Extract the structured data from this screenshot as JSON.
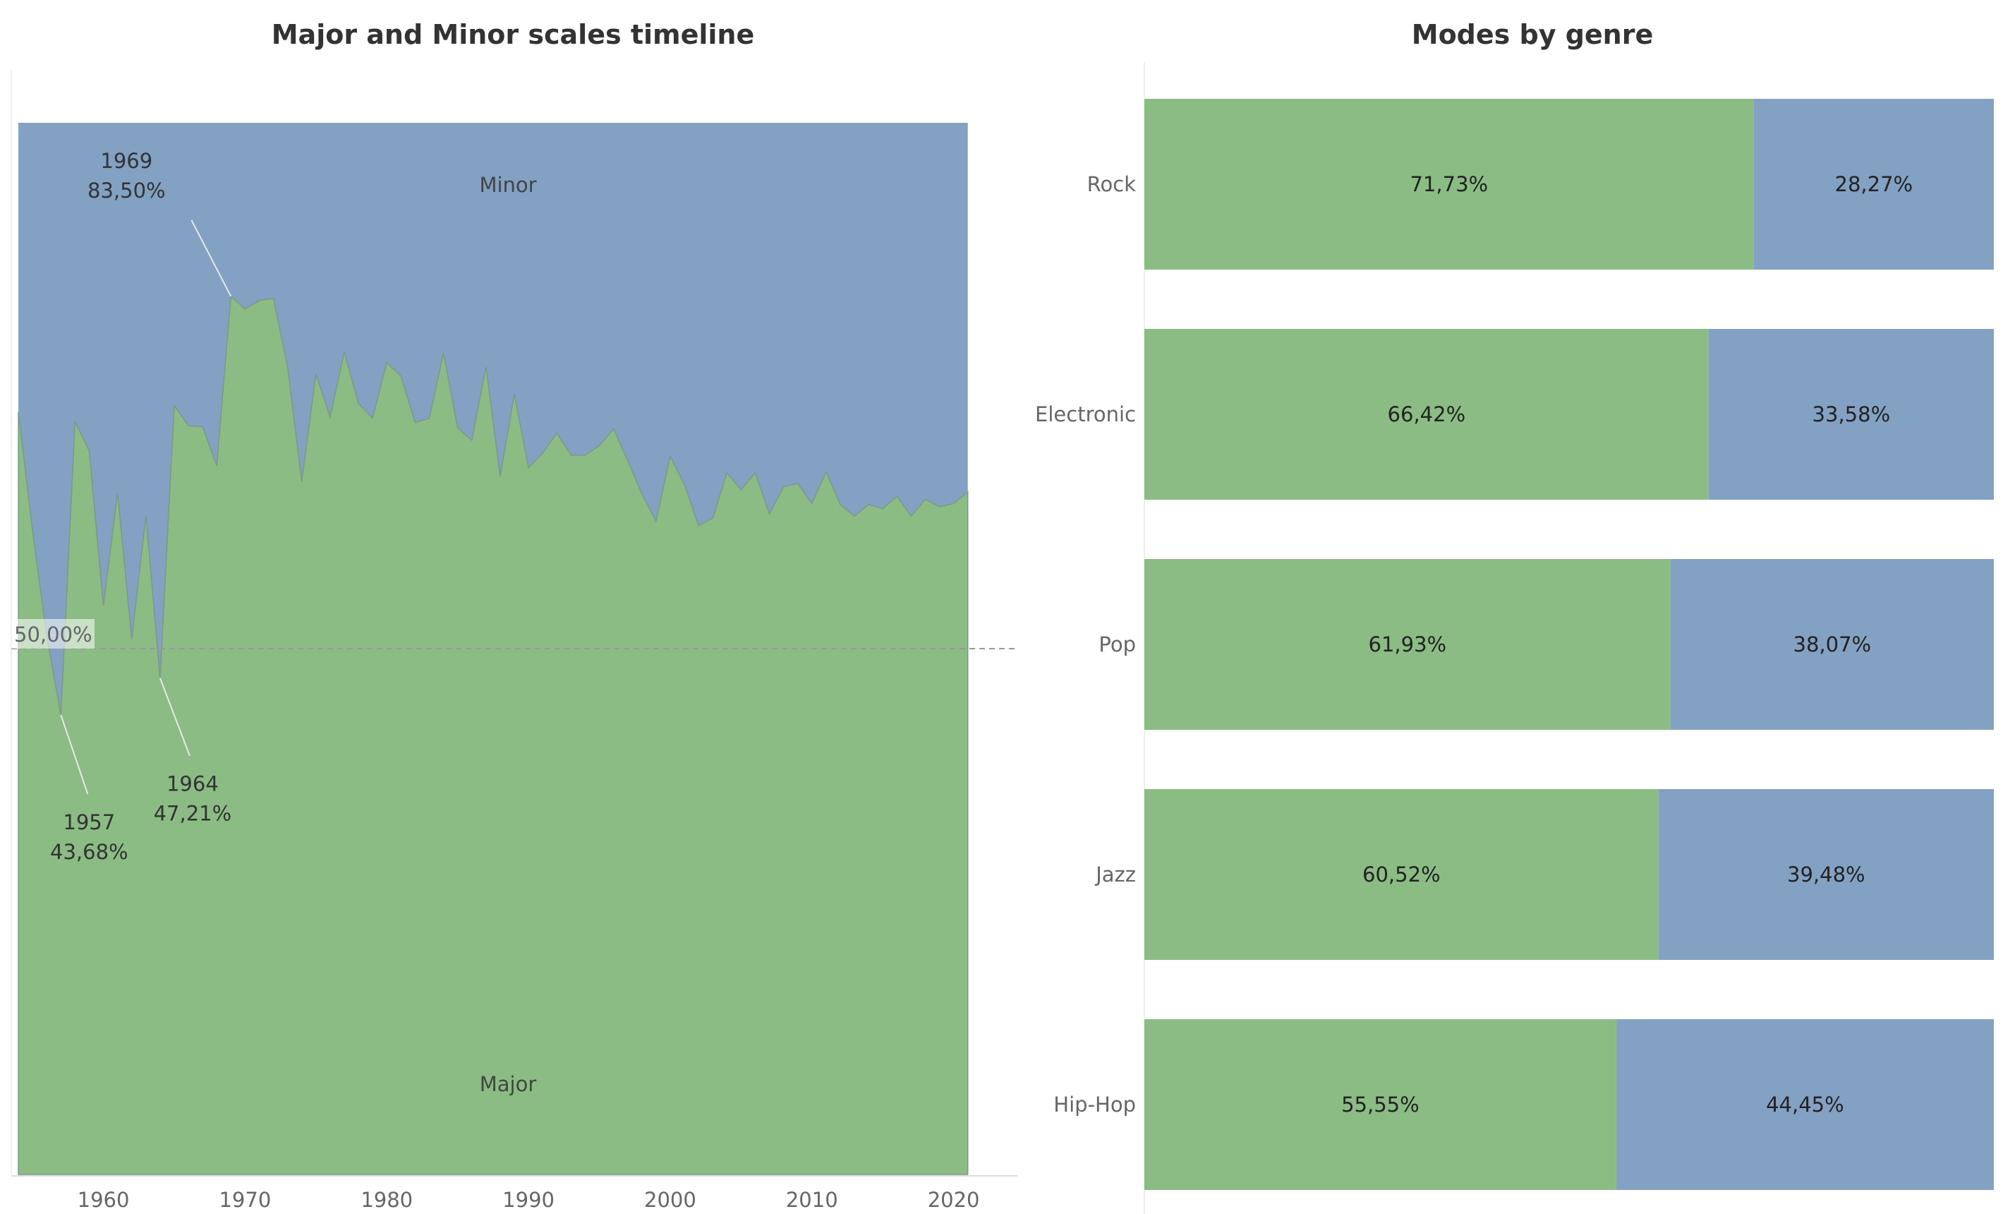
{
  "chart_data": [
    {
      "type": "area",
      "title": "Major and Minor scales timeline",
      "xlabel": "",
      "ylabel": "",
      "xlim": [
        1953.5,
        2024.5
      ],
      "ylim": [
        0,
        1
      ],
      "stacked_100": true,
      "x_ticks": [
        1960,
        1970,
        1980,
        1990,
        2000,
        2010,
        2020
      ],
      "x_tick_labels": [
        "1960",
        "1970",
        "1980",
        "1990",
        "2000",
        "2010",
        "2020"
      ],
      "x": [
        1954,
        1955,
        1956,
        1957,
        1958,
        1959,
        1960,
        1961,
        1962,
        1963,
        1964,
        1965,
        1966,
        1967,
        1968,
        1969,
        1970,
        1971,
        1972,
        1973,
        1974,
        1975,
        1976,
        1977,
        1978,
        1979,
        1980,
        1981,
        1982,
        1983,
        1984,
        1985,
        1986,
        1987,
        1988,
        1989,
        1990,
        1991,
        1992,
        1993,
        1994,
        1995,
        1996,
        1997,
        1998,
        1999,
        2000,
        2001,
        2002,
        2003,
        2004,
        2005,
        2006,
        2007,
        2008,
        2009,
        2010,
        2011,
        2012,
        2013,
        2014,
        2015,
        2016,
        2017,
        2018,
        2019,
        2020,
        2021
      ],
      "series": [
        {
          "name": "Major",
          "color": "#8abc84",
          "values": [
            0.725,
            0.612,
            0.512,
            0.437,
            0.716,
            0.688,
            0.541,
            0.648,
            0.509,
            0.626,
            0.472,
            0.731,
            0.712,
            0.711,
            0.674,
            0.835,
            0.823,
            0.831,
            0.833,
            0.768,
            0.659,
            0.761,
            0.72,
            0.782,
            0.733,
            0.719,
            0.772,
            0.759,
            0.715,
            0.719,
            0.781,
            0.71,
            0.698,
            0.768,
            0.664,
            0.742,
            0.672,
            0.686,
            0.705,
            0.684,
            0.684,
            0.693,
            0.709,
            0.679,
            0.647,
            0.621,
            0.683,
            0.656,
            0.617,
            0.624,
            0.667,
            0.651,
            0.667,
            0.628,
            0.654,
            0.657,
            0.638,
            0.668,
            0.637,
            0.626,
            0.637,
            0.633,
            0.645,
            0.626,
            0.642,
            0.635,
            0.638,
            0.649
          ]
        },
        {
          "name": "Minor",
          "color": "#82a1c3",
          "values": [
            0.275,
            0.388,
            0.488,
            0.563,
            0.284,
            0.312,
            0.459,
            0.352,
            0.491,
            0.374,
            0.528,
            0.269,
            0.288,
            0.289,
            0.326,
            0.165,
            0.177,
            0.169,
            0.167,
            0.232,
            0.341,
            0.239,
            0.28,
            0.218,
            0.267,
            0.281,
            0.228,
            0.241,
            0.285,
            0.281,
            0.219,
            0.29,
            0.302,
            0.232,
            0.336,
            0.258,
            0.328,
            0.314,
            0.295,
            0.316,
            0.316,
            0.307,
            0.291,
            0.321,
            0.353,
            0.379,
            0.317,
            0.344,
            0.383,
            0.376,
            0.333,
            0.349,
            0.333,
            0.372,
            0.346,
            0.343,
            0.362,
            0.332,
            0.363,
            0.374,
            0.363,
            0.367,
            0.355,
            0.374,
            0.358,
            0.365,
            0.362,
            0.351
          ]
        }
      ],
      "region_labels": {
        "minor": "Minor",
        "major": "Major"
      },
      "reference_line": {
        "value": 0.5,
        "label": "50,00%"
      },
      "annotations": [
        {
          "x": 1969,
          "year": "1969",
          "pct": "83,50%",
          "value": 0.835
        },
        {
          "x": 1957,
          "year": "1957",
          "pct": "43,68%",
          "value": 0.437
        },
        {
          "x": 1964,
          "year": "1964",
          "pct": "47,21%",
          "value": 0.472
        }
      ]
    },
    {
      "type": "bar",
      "orientation": "horizontal",
      "stacked_100": true,
      "title": "Modes by genre",
      "categories": [
        "Rock",
        "Electronic",
        "Pop",
        "Jazz",
        "Hip-Hop"
      ],
      "series": [
        {
          "color": "#8abc84",
          "values": [
            71.73,
            66.42,
            61.93,
            60.52,
            55.55
          ],
          "labels": [
            "71,73%",
            "66,42%",
            "61,93%",
            "60,52%",
            "55,55%"
          ]
        },
        {
          "color": "#82a1c3",
          "values": [
            28.27,
            33.58,
            38.07,
            39.48,
            44.45
          ],
          "labels": [
            "28,27%",
            "33,58%",
            "38,07%",
            "39,48%",
            "44,45%"
          ]
        }
      ]
    }
  ]
}
